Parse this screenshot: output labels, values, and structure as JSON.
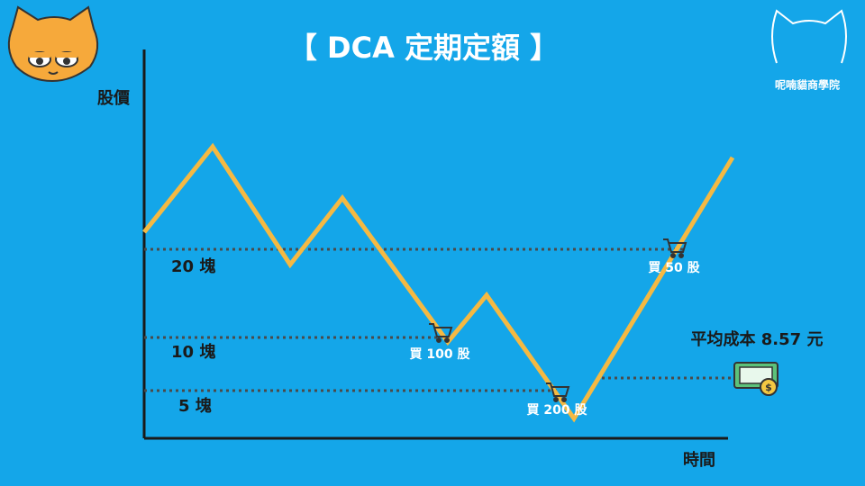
{
  "title": "【 DCA 定期定額 】",
  "brand": "呢喃貓商學院",
  "axes": {
    "y": "股價",
    "x": "時間"
  },
  "levels": [
    {
      "label": "20 塊"
    },
    {
      "label": "10 塊"
    },
    {
      "label": "5 塊"
    }
  ],
  "purchases": [
    {
      "label": "買 50 股"
    },
    {
      "label": "買 100 股"
    },
    {
      "label": "買 200 股"
    }
  ],
  "average_cost": "平均成本 8.57 元"
}
